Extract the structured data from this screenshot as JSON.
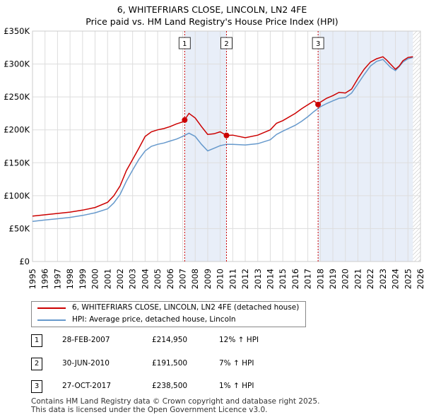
{
  "title_line1": "6, WHITEFRIARS CLOSE, LINCOLN, LN2 4FE",
  "title_line2": "Price paid vs. HM Land Registry's House Price Index (HPI)",
  "chart_data": {
    "type": "line",
    "x_range": [
      1995,
      2026
    ],
    "ylim": [
      0,
      350000
    ],
    "y_ticks": [
      0,
      50000,
      100000,
      150000,
      200000,
      250000,
      300000,
      350000
    ],
    "y_tick_labels": [
      "£0",
      "£50K",
      "£100K",
      "£150K",
      "£200K",
      "£250K",
      "£300K",
      "£350K"
    ],
    "x_ticks": [
      1995,
      1996,
      1997,
      1998,
      1999,
      2000,
      2001,
      2002,
      2003,
      2004,
      2005,
      2006,
      2007,
      2008,
      2009,
      2010,
      2011,
      2012,
      2013,
      2014,
      2015,
      2016,
      2017,
      2018,
      2019,
      2020,
      2021,
      2022,
      2023,
      2024,
      2025,
      2026
    ],
    "x_tick_labels": [
      "1995",
      "1996",
      "1997",
      "1998",
      "1999",
      "2000",
      "2001",
      "2002",
      "2003",
      "2004",
      "2005",
      "2006",
      "2007",
      "2008",
      "2009",
      "2010",
      "2011",
      "2012",
      "2013",
      "2014",
      "2015",
      "2016",
      "2017",
      "2018",
      "2019",
      "2020",
      "2021",
      "2022",
      "2023",
      "2024",
      "2025",
      "2026"
    ],
    "grid": true,
    "hatch_from": 2025.4,
    "shaded_spans": [
      [
        2007.16,
        2010.5
      ],
      [
        2017.82,
        2025.4
      ]
    ],
    "sale_markers": [
      {
        "label": "1",
        "x": 2007.16,
        "y": 214950
      },
      {
        "label": "2",
        "x": 2010.5,
        "y": 191500
      },
      {
        "label": "3",
        "x": 2017.82,
        "y": 238500
      }
    ],
    "series": [
      {
        "name": "6, WHITEFRIARS CLOSE, LINCOLN, LN2 4FE (detached house)",
        "color": "#cc0000",
        "x": [
          1995,
          1996,
          1997,
          1998,
          1999,
          2000,
          2001,
          2001.5,
          2002,
          2002.5,
          2003,
          2003.5,
          2004,
          2004.5,
          2005,
          2005.5,
          2006,
          2006.5,
          2007,
          2007.16,
          2007.5,
          2008,
          2008.5,
          2009,
          2009.5,
          2010,
          2010.5,
          2011,
          2012,
          2013,
          2014,
          2014.5,
          2015,
          2016,
          2016.5,
          2017,
          2017.5,
          2017.82,
          2018,
          2018.5,
          2019,
          2019.5,
          2020,
          2020.5,
          2021,
          2021.5,
          2022,
          2022.5,
          2023,
          2023.3,
          2023.6,
          2024,
          2024.3,
          2024.6,
          2025,
          2025.4
        ],
        "values": [
          69000,
          71000,
          73000,
          75000,
          78000,
          82000,
          90000,
          100000,
          115000,
          138000,
          155000,
          172000,
          190000,
          197000,
          200000,
          202000,
          205000,
          209000,
          212000,
          214950,
          225000,
          218000,
          205000,
          193000,
          194000,
          197000,
          191500,
          192000,
          188000,
          192000,
          200000,
          210000,
          214000,
          225000,
          232000,
          238000,
          244000,
          238500,
          242000,
          248000,
          252000,
          257000,
          256000,
          262000,
          278000,
          292000,
          303000,
          308000,
          311000,
          306000,
          300000,
          292000,
          297000,
          305000,
          310000,
          311000
        ]
      },
      {
        "name": "HPI: Average price, detached house, Lincoln",
        "color": "#6699cc",
        "x": [
          1995,
          1996,
          1997,
          1998,
          1999,
          2000,
          2001,
          2001.5,
          2002,
          2002.5,
          2003,
          2003.5,
          2004,
          2004.5,
          2005,
          2005.5,
          2006,
          2006.5,
          2007,
          2007.5,
          2008,
          2008.5,
          2009,
          2009.5,
          2010,
          2010.5,
          2011,
          2012,
          2013,
          2014,
          2014.5,
          2015,
          2016,
          2016.5,
          2017,
          2017.5,
          2018,
          2018.5,
          2019,
          2019.5,
          2020,
          2020.5,
          2021,
          2021.5,
          2022,
          2022.5,
          2023,
          2023.3,
          2023.6,
          2024,
          2024.3,
          2024.6,
          2025,
          2025.4
        ],
        "values": [
          61000,
          63000,
          65000,
          67000,
          70000,
          74000,
          80000,
          89000,
          102000,
          122000,
          139000,
          155000,
          168000,
          175000,
          178000,
          180000,
          183000,
          186000,
          190000,
          195000,
          190000,
          178000,
          168000,
          172000,
          176000,
          178000,
          178000,
          177000,
          179000,
          185000,
          193000,
          198000,
          207000,
          213000,
          220000,
          228000,
          235000,
          240000,
          244000,
          248000,
          249000,
          256000,
          270000,
          284000,
          297000,
          304000,
          307000,
          301000,
          295000,
          290000,
          296000,
          303000,
          308000,
          310000
        ]
      }
    ]
  },
  "legend": {
    "items": [
      {
        "label": "6, WHITEFRIARS CLOSE, LINCOLN, LN2 4FE (detached house)",
        "color": "#cc0000"
      },
      {
        "label": "HPI: Average price, detached house, Lincoln",
        "color": "#6699cc"
      }
    ]
  },
  "transactions": [
    {
      "num": "1",
      "date": "28-FEB-2007",
      "price": "£214,950",
      "hpi": "12% ↑ HPI"
    },
    {
      "num": "2",
      "date": "30-JUN-2010",
      "price": "£191,500",
      "hpi": "7% ↑ HPI"
    },
    {
      "num": "3",
      "date": "27-OCT-2017",
      "price": "£238,500",
      "hpi": "1% ↑ HPI"
    }
  ],
  "footer_line1": "Contains HM Land Registry data © Crown copyright and database right 2025.",
  "footer_line2": "This data is licensed under the Open Government Licence v3.0."
}
